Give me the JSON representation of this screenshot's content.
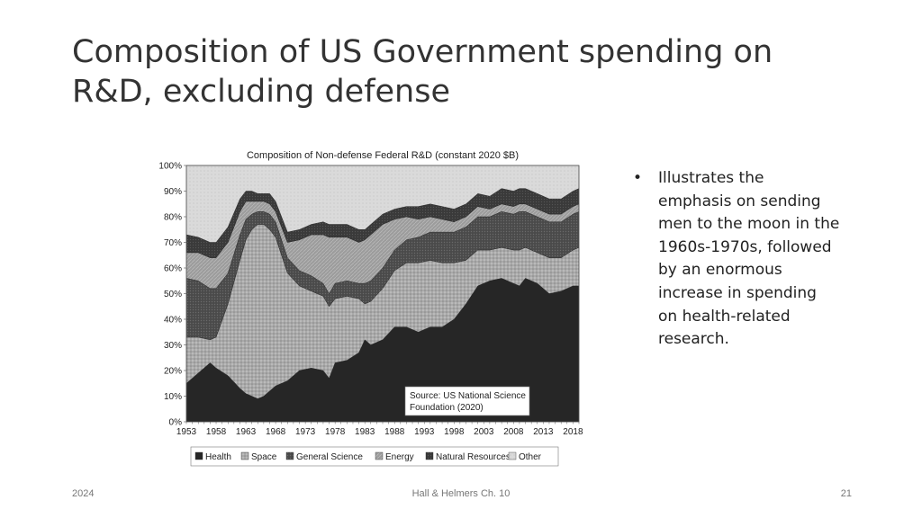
{
  "slide": {
    "title_line1": "Composition of US Government spending on",
    "title_line2": "R&D, excluding defense",
    "bullets": [
      "Illustrates the emphasis on sending men to the moon in the 1960s-1970s, followed by an enormous increase in spending on health-related research."
    ],
    "footer": {
      "left": "2024",
      "center": "Hall & Helmers Ch. 10",
      "right": "21"
    }
  },
  "chart_data": {
    "type": "area",
    "title": "Composition of Non-defense Federal R&D (constant 2020 $B)",
    "source_note": [
      "Source: US National Science",
      "Foundation (2020)"
    ],
    "xlabel": "",
    "ylabel": "",
    "ylim": [
      0,
      100
    ],
    "x_range": [
      1953,
      2019
    ],
    "x_ticks": [
      1953,
      1958,
      1963,
      1968,
      1973,
      1978,
      1983,
      1988,
      1993,
      1998,
      2003,
      2008,
      2013,
      2018
    ],
    "y_ticks": [
      "0%",
      "10%",
      "20%",
      "30%",
      "40%",
      "50%",
      "60%",
      "70%",
      "80%",
      "90%",
      "100%"
    ],
    "grid": false,
    "legend_position": "bottom",
    "stacked": true,
    "x": [
      1953,
      1955,
      1957,
      1958,
      1960,
      1962,
      1963,
      1964,
      1965,
      1966,
      1967,
      1968,
      1970,
      1972,
      1974,
      1976,
      1977,
      1978,
      1980,
      1982,
      1983,
      1984,
      1986,
      1988,
      1990,
      1992,
      1994,
      1996,
      1998,
      2000,
      2002,
      2004,
      2006,
      2008,
      2009,
      2010,
      2012,
      2014,
      2016,
      2018,
      2019
    ],
    "series": [
      {
        "name": "Health",
        "color": "#262626",
        "values": [
          15,
          19,
          23,
          21,
          18,
          13,
          11,
          10,
          9,
          10,
          12,
          14,
          16,
          20,
          21,
          20,
          17,
          23,
          24,
          27,
          32,
          30,
          32,
          37,
          37,
          35,
          37,
          37,
          40,
          46,
          53,
          55,
          56,
          54,
          53,
          56,
          54,
          50,
          51,
          53,
          53
        ]
      },
      {
        "name": "Space",
        "color": "#a8a8a8",
        "values": [
          18,
          14,
          9,
          12,
          28,
          50,
          60,
          65,
          68,
          67,
          63,
          58,
          42,
          33,
          30,
          29,
          28,
          25,
          25,
          21,
          14,
          17,
          20,
          22,
          25,
          27,
          26,
          25,
          22,
          17,
          14,
          12,
          12,
          13,
          14,
          12,
          12,
          14,
          13,
          14,
          15
        ]
      },
      {
        "name": "General Science",
        "color": "#4a4a4a",
        "values": [
          23,
          22,
          20,
          19,
          12,
          10,
          8,
          6,
          5,
          5,
          6,
          6,
          6,
          6,
          6,
          5,
          5,
          6,
          6,
          6,
          8,
          8,
          8,
          8,
          9,
          10,
          11,
          12,
          12,
          13,
          13,
          13,
          14,
          14,
          15,
          14,
          14,
          14,
          14,
          14,
          14
        ]
      },
      {
        "name": "Energy",
        "color": "#9a9a9a",
        "values": [
          10,
          11,
          12,
          12,
          12,
          9,
          7,
          5,
          4,
          4,
          4,
          4,
          6,
          12,
          16,
          19,
          22,
          18,
          17,
          16,
          17,
          18,
          17,
          12,
          9,
          7,
          6,
          5,
          4,
          4,
          4,
          3,
          3,
          3,
          3,
          3,
          3,
          3,
          3,
          3,
          3
        ]
      },
      {
        "name": "Natural Resources",
        "color": "#3a3a3a",
        "values": [
          7,
          6,
          6,
          6,
          6,
          5,
          4,
          4,
          3,
          3,
          4,
          4,
          4,
          4,
          4,
          5,
          5,
          5,
          5,
          5,
          4,
          4,
          4,
          4,
          4,
          5,
          5,
          5,
          5,
          5,
          5,
          5,
          6,
          6,
          6,
          6,
          6,
          6,
          6,
          6,
          6
        ]
      },
      {
        "name": "Other",
        "color": "#d9d9d9",
        "values": [
          27,
          28,
          30,
          30,
          24,
          13,
          10,
          10,
          11,
          11,
          11,
          14,
          26,
          25,
          23,
          22,
          23,
          23,
          23,
          25,
          25,
          23,
          19,
          17,
          16,
          16,
          15,
          16,
          17,
          15,
          11,
          12,
          9,
          10,
          9,
          9,
          11,
          13,
          13,
          10,
          9
        ]
      }
    ]
  }
}
